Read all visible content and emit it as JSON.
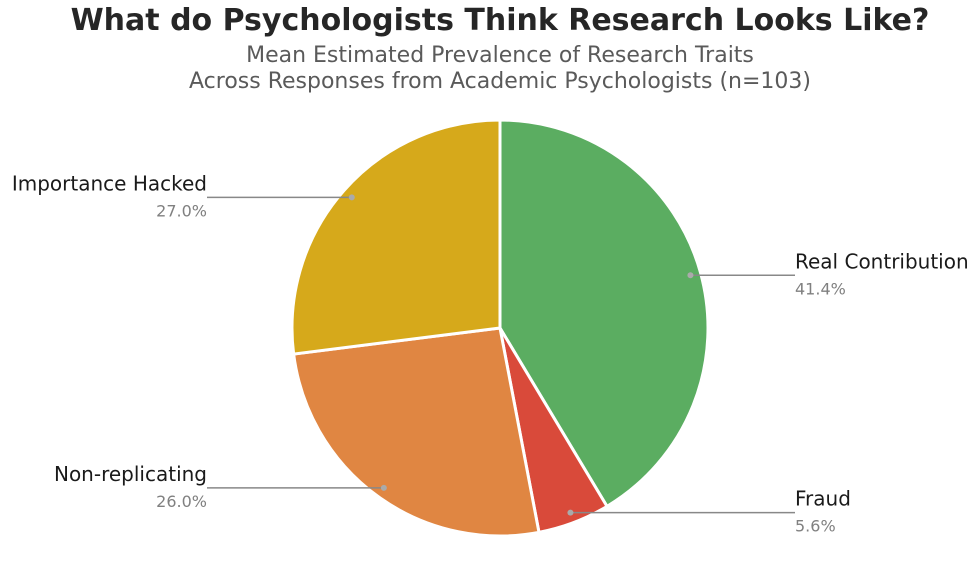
{
  "chart_data": {
    "type": "pie",
    "title": "What do Psychologists Think Research Looks Like?",
    "subtitle": [
      "Mean Estimated Prevalence of Research Traits",
      "Across Responses from Academic Psychologists (n=103)"
    ],
    "categories": [
      "Real Contribution",
      "Fraud",
      "Non-replicating",
      "Importance Hacked"
    ],
    "values": [
      41.4,
      5.6,
      26.0,
      27.0
    ],
    "value_labels": [
      "41.4%",
      "5.6%",
      "26.0%",
      "27.0%"
    ],
    "colors": [
      "#5bad61",
      "#d94a3a",
      "#e08642",
      "#d6a91b"
    ]
  }
}
